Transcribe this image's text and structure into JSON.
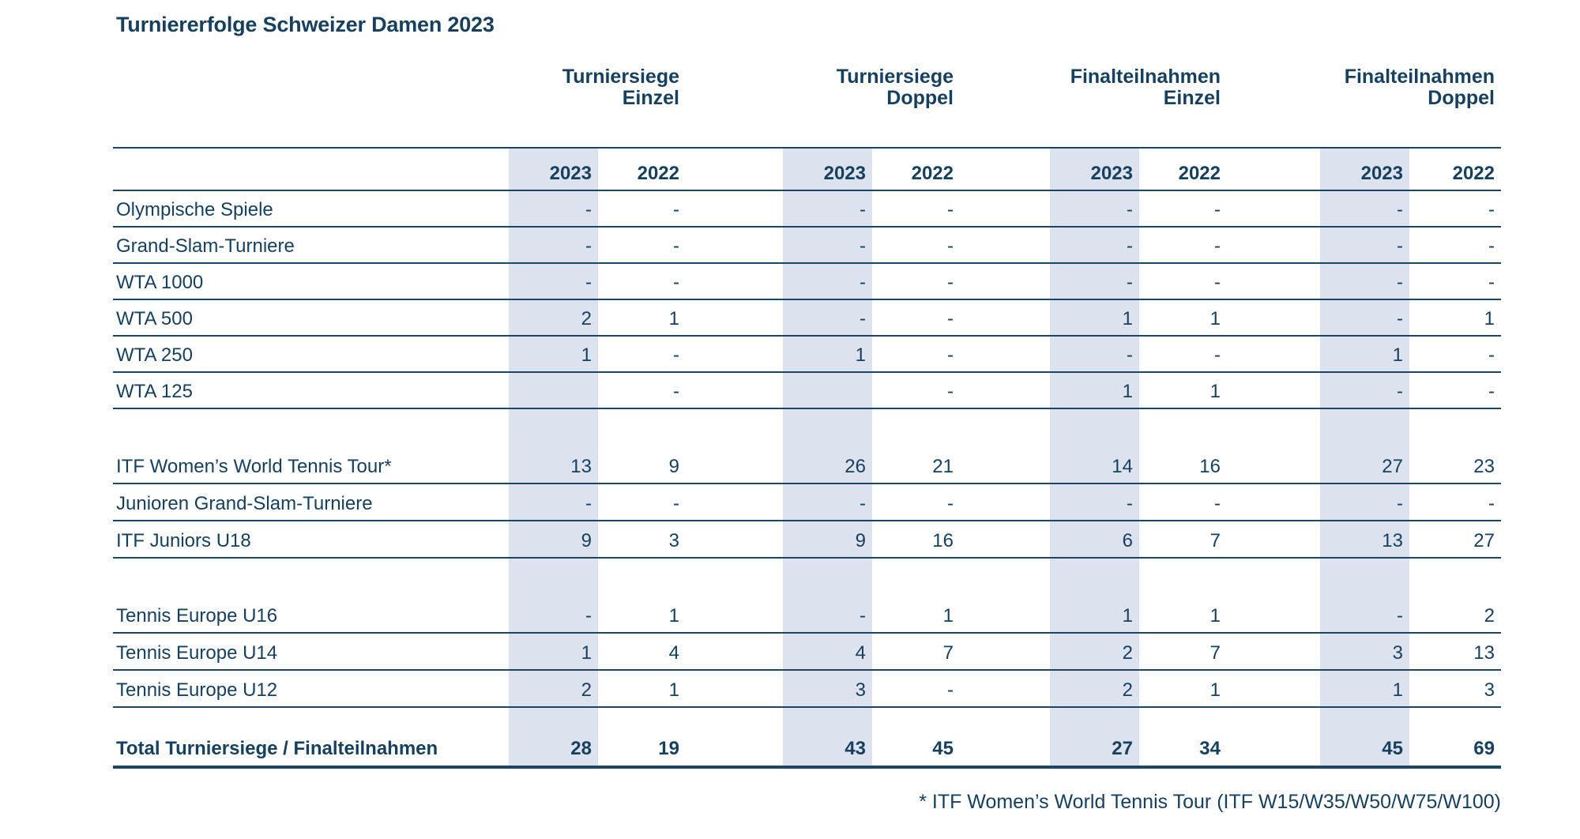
{
  "page": {
    "title": "Turniererfolge Schweizer Damen 2023",
    "footnote": "* ITF Women’s World Tennis Tour (ITF W15/W35/W50/W75/W100)"
  },
  "colors": {
    "text_navy": "#17405e",
    "line_navy": "#1c4763",
    "column_band": "#dce3ee"
  },
  "table": {
    "group_headers": [
      {
        "line1": "Turniersiege",
        "line2": "Einzel"
      },
      {
        "line1": "Turniersiege",
        "line2": "Doppel"
      },
      {
        "line1": "Finalteilnahmen",
        "line2": "Einzel"
      },
      {
        "line1": "Finalteilnahmen",
        "line2": "Doppel"
      }
    ],
    "year_headers": [
      "2023",
      "2022",
      "2023",
      "2022",
      "2023",
      "2022",
      "2023",
      "2022"
    ],
    "rows": [
      {
        "label": "Olympische Spiele",
        "values": [
          "-",
          "-",
          "-",
          "-",
          "-",
          "-",
          "-",
          "-"
        ]
      },
      {
        "label": "Grand-Slam-Turniere",
        "values": [
          "-",
          "-",
          "-",
          "-",
          "-",
          "-",
          "-",
          "-"
        ]
      },
      {
        "label": "WTA 1000",
        "values": [
          "-",
          "-",
          "-",
          "-",
          "-",
          "-",
          "-",
          "-"
        ]
      },
      {
        "label": "WTA 500",
        "values": [
          "2",
          "1",
          "-",
          "-",
          "1",
          "1",
          "-",
          "1"
        ]
      },
      {
        "label": "WTA 250",
        "values": [
          "1",
          "-",
          "1",
          "-",
          "-",
          "-",
          "1",
          "-"
        ]
      },
      {
        "label": "WTA 125",
        "values": [
          "",
          "-",
          "",
          "-",
          "1",
          "1",
          "-",
          "-"
        ]
      },
      {
        "label": "ITF Women’s World Tennis Tour*",
        "values": [
          "13",
          "9",
          "26",
          "21",
          "14",
          "16",
          "27",
          "23"
        ]
      },
      {
        "label": "Junioren Grand-Slam-Turniere",
        "values": [
          "-",
          "-",
          "-",
          "-",
          "-",
          "-",
          "-",
          "-"
        ]
      },
      {
        "label": "ITF Juniors U18",
        "values": [
          "9",
          "3",
          "9",
          "16",
          "6",
          "7",
          "13",
          "27"
        ]
      },
      {
        "label": "Tennis Europe U16",
        "values": [
          "-",
          "1",
          "-",
          "1",
          "1",
          "1",
          "-",
          "2"
        ]
      },
      {
        "label": "Tennis Europe U14",
        "values": [
          "1",
          "4",
          "4",
          "7",
          "2",
          "7",
          "3",
          "13"
        ]
      },
      {
        "label": "Tennis Europe U12",
        "values": [
          "2",
          "1",
          "3",
          "-",
          "2",
          "1",
          "1",
          "3"
        ]
      }
    ],
    "total": {
      "label": "Total Turniersiege / Finalteilnahmen",
      "values": [
        "28",
        "19",
        "43",
        "45",
        "27",
        "34",
        "45",
        "69"
      ]
    }
  }
}
